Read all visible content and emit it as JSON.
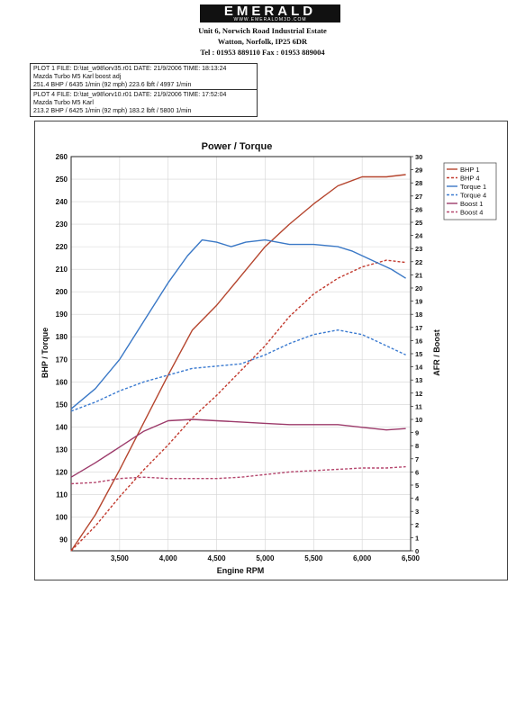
{
  "header": {
    "brand": "EMERALD",
    "brand_url": "WWW.EMERALDM3D.COM",
    "address_1": "Unit 6, Norwich Road Industrial Estate",
    "address_2": "Watton, Norfolk, IP25 6DR",
    "phone_fax": "Tel : 01953 889110     Fax : 01953 889004"
  },
  "plots": [
    {
      "line1": "PLOT 1 FILE: D:\\tat_w98\\orv35.r01   DATE: 21/9/2006   TIME: 18:13:24",
      "line2": "Mazda Turbo M5 Karl boost adj",
      "line3": "251.4 BHP / 6435 1/min (92 mph)     223.6 lbft / 4997 1/min"
    },
    {
      "line1": "PLOT 4 FILE: D:\\tat_w98\\orv10.r01   DATE: 21/9/2006   TIME: 17:52:04",
      "line2": "Mazda Turbo M5 Karl",
      "line3": "213.2 BHP / 6425 1/min (92 mph)     183.2 lbft / 5800 1/min"
    }
  ],
  "chart_data": {
    "type": "line",
    "title": "Power / Torque",
    "xlabel": "Engine RPM",
    "ylabel": "BHP / Torque",
    "y2label": "AFR / Boost",
    "xlim": [
      3000,
      6500
    ],
    "ylim": [
      85,
      260
    ],
    "y2lim": [
      0,
      30
    ],
    "x_ticks": [
      3500,
      4000,
      4500,
      5000,
      5500,
      6000,
      6500
    ],
    "x_tick_labels": [
      "3,500",
      "4,000",
      "4,500",
      "5,000",
      "5,500",
      "6,000",
      "6,500"
    ],
    "y_ticks": [
      90,
      100,
      110,
      120,
      130,
      140,
      150,
      160,
      170,
      180,
      190,
      200,
      210,
      220,
      230,
      240,
      250,
      260
    ],
    "y2_ticks": [
      0,
      1,
      2,
      3,
      4,
      5,
      6,
      7,
      8,
      9,
      10,
      11,
      12,
      13,
      14,
      15,
      16,
      17,
      18,
      19,
      20,
      21,
      22,
      23,
      24,
      25,
      26,
      27,
      28,
      29,
      30
    ],
    "grid": true,
    "legend_position": "right",
    "series": [
      {
        "name": "BHP 1",
        "axis": "left",
        "style": "solid",
        "color": "#b5452e",
        "x": [
          3000,
          3250,
          3500,
          3750,
          4000,
          4250,
          4500,
          4750,
          5000,
          5250,
          5500,
          5750,
          6000,
          6250,
          6450
        ],
        "y": [
          85,
          101,
          121,
          142,
          163,
          183,
          194,
          207,
          220,
          230,
          239,
          247,
          251,
          251,
          252
        ]
      },
      {
        "name": "BHP 4",
        "axis": "left",
        "style": "dashed",
        "color": "#c23a2e",
        "x": [
          3000,
          3250,
          3500,
          3750,
          4000,
          4250,
          4500,
          4750,
          5000,
          5250,
          5500,
          5750,
          6000,
          6250,
          6450
        ],
        "y": [
          85,
          96,
          109,
          121,
          132,
          144,
          154,
          165,
          176,
          189,
          199,
          206,
          211,
          214,
          213
        ]
      },
      {
        "name": "Torque 1",
        "axis": "left",
        "style": "solid",
        "color": "#3a78c6",
        "x": [
          3000,
          3250,
          3500,
          3750,
          4000,
          4200,
          4350,
          4500,
          4650,
          4800,
          5000,
          5250,
          5500,
          5750,
          5900,
          6100,
          6300,
          6450
        ],
        "y": [
          148,
          157,
          170,
          187,
          204,
          216,
          223,
          222,
          220,
          222,
          223,
          221,
          221,
          220,
          218,
          214,
          210,
          206
        ]
      },
      {
        "name": "Torque 4",
        "axis": "left",
        "style": "dashed",
        "color": "#3a7ad0",
        "x": [
          3000,
          3250,
          3500,
          3750,
          4000,
          4250,
          4500,
          4750,
          5000,
          5250,
          5500,
          5750,
          6000,
          6250,
          6450
        ],
        "y": [
          147,
          151,
          156,
          160,
          163,
          166,
          167,
          168,
          172,
          177,
          181,
          183,
          181,
          176,
          172
        ]
      },
      {
        "name": "Boost 1",
        "axis": "right",
        "style": "solid",
        "color": "#9c3a6a",
        "x": [
          3000,
          3250,
          3500,
          3750,
          4000,
          4250,
          4500,
          4750,
          5000,
          5250,
          5500,
          5750,
          6000,
          6250,
          6450
        ],
        "y": [
          5.6,
          6.7,
          7.9,
          9.1,
          9.9,
          10.0,
          9.9,
          9.8,
          9.7,
          9.6,
          9.6,
          9.6,
          9.4,
          9.2,
          9.3
        ]
      },
      {
        "name": "Boost 4",
        "axis": "right",
        "style": "dashed",
        "color": "#b5476e",
        "x": [
          3000,
          3250,
          3500,
          3750,
          4000,
          4250,
          4500,
          4750,
          5000,
          5250,
          5500,
          5750,
          6000,
          6250,
          6450
        ],
        "y": [
          5.1,
          5.2,
          5.5,
          5.6,
          5.5,
          5.5,
          5.5,
          5.6,
          5.8,
          6.0,
          6.1,
          6.2,
          6.3,
          6.3,
          6.4
        ]
      }
    ]
  }
}
